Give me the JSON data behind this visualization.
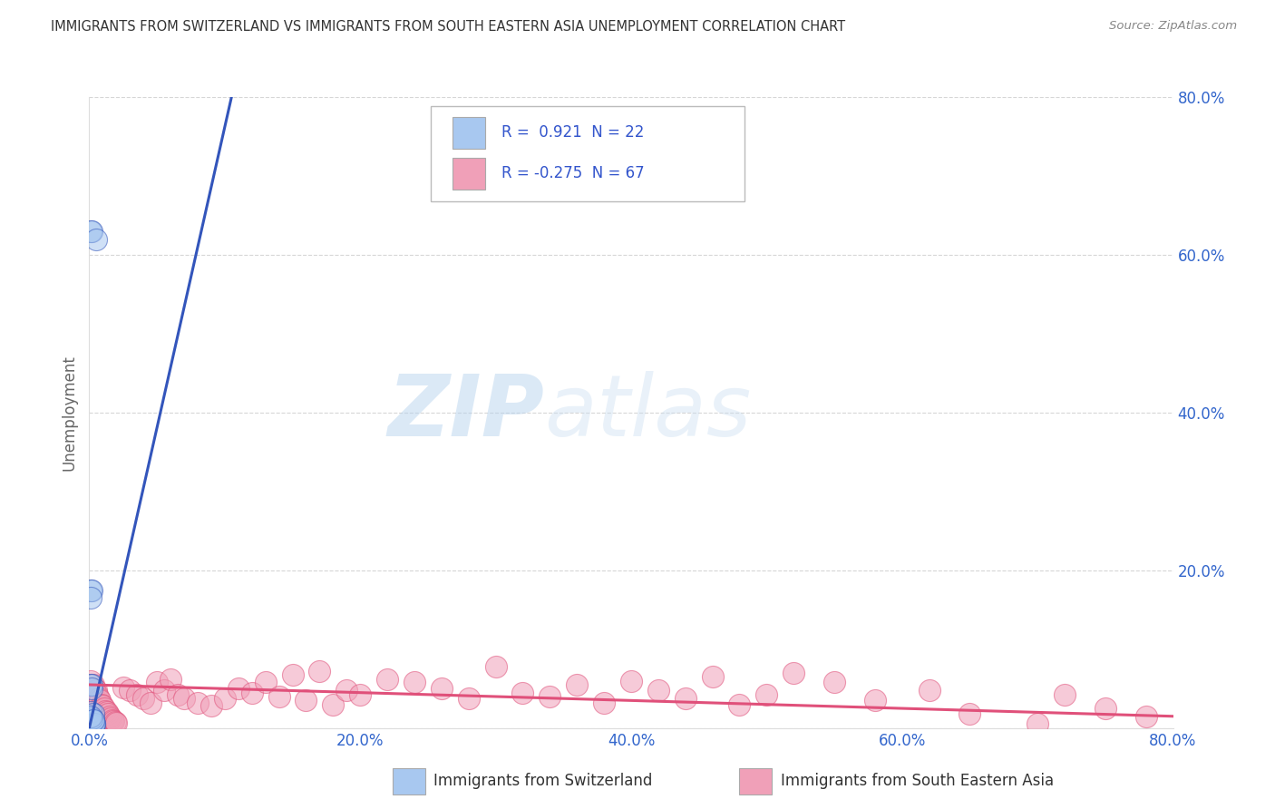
{
  "title": "IMMIGRANTS FROM SWITZERLAND VS IMMIGRANTS FROM SOUTH EASTERN ASIA UNEMPLOYMENT CORRELATION CHART",
  "source": "Source: ZipAtlas.com",
  "ylabel": "Unemployment",
  "color_switzerland": "#a8c8f0",
  "color_sea": "#f0a0b8",
  "trendline_switzerland": "#3355bb",
  "trendline_sea": "#e0507a",
  "watermark_zip": "ZIP",
  "watermark_atlas": "atlas",
  "background_color": "#ffffff",
  "grid_color": "#cccccc",
  "xlim": [
    0.0,
    0.8
  ],
  "ylim": [
    0.0,
    0.8
  ],
  "sw_x": [
    0.001,
    0.002,
    0.001,
    0.002,
    0.001,
    0.003,
    0.002,
    0.001,
    0.003,
    0.004,
    0.002,
    0.001,
    0.003,
    0.002,
    0.001,
    0.002,
    0.003,
    0.004,
    0.002,
    0.001,
    0.005,
    0.003
  ],
  "sw_y": [
    0.055,
    0.055,
    0.175,
    0.175,
    0.165,
    0.01,
    0.05,
    0.02,
    0.018,
    0.005,
    0.003,
    0.002,
    0.005,
    0.01,
    0.63,
    0.63,
    0.003,
    0.005,
    0.012,
    0.015,
    0.62,
    0.01
  ],
  "sea_x": [
    0.001,
    0.002,
    0.003,
    0.004,
    0.005,
    0.006,
    0.007,
    0.008,
    0.009,
    0.01,
    0.011,
    0.012,
    0.013,
    0.014,
    0.015,
    0.016,
    0.017,
    0.018,
    0.019,
    0.02,
    0.025,
    0.03,
    0.035,
    0.04,
    0.045,
    0.05,
    0.055,
    0.06,
    0.065,
    0.07,
    0.08,
    0.09,
    0.1,
    0.11,
    0.12,
    0.13,
    0.14,
    0.15,
    0.16,
    0.17,
    0.18,
    0.19,
    0.2,
    0.22,
    0.24,
    0.26,
    0.28,
    0.3,
    0.32,
    0.34,
    0.36,
    0.38,
    0.4,
    0.42,
    0.44,
    0.46,
    0.48,
    0.5,
    0.52,
    0.55,
    0.58,
    0.62,
    0.65,
    0.7,
    0.72,
    0.75,
    0.78
  ],
  "sea_y": [
    0.06,
    0.048,
    0.055,
    0.05,
    0.048,
    0.042,
    0.038,
    0.035,
    0.03,
    0.028,
    0.025,
    0.022,
    0.02,
    0.018,
    0.015,
    0.012,
    0.01,
    0.009,
    0.008,
    0.007,
    0.052,
    0.048,
    0.042,
    0.038,
    0.032,
    0.058,
    0.048,
    0.062,
    0.042,
    0.038,
    0.032,
    0.028,
    0.038,
    0.05,
    0.045,
    0.058,
    0.04,
    0.068,
    0.035,
    0.072,
    0.03,
    0.048,
    0.042,
    0.062,
    0.058,
    0.05,
    0.038,
    0.078,
    0.045,
    0.04,
    0.055,
    0.032,
    0.06,
    0.048,
    0.038,
    0.065,
    0.03,
    0.042,
    0.07,
    0.058,
    0.035,
    0.048,
    0.018,
    0.005,
    0.042,
    0.025,
    0.015
  ],
  "sw_trend_x": [
    0.0,
    0.105
  ],
  "sw_trend_y": [
    0.0,
    0.8
  ],
  "sea_trend_x": [
    0.0,
    0.8
  ],
  "sea_trend_y": [
    0.055,
    0.015
  ]
}
